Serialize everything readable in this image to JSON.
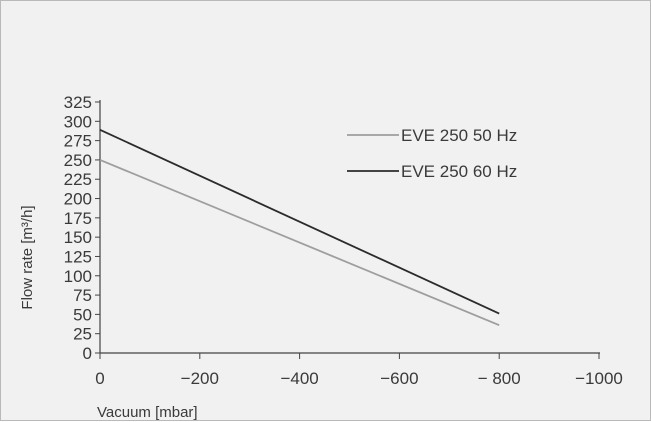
{
  "chart_data": {
    "type": "line",
    "xlabel": "Vacuum [mbar]",
    "ylabel": "Flow rate [m³/h]",
    "xlim": [
      0,
      -1000
    ],
    "ylim": [
      0,
      325
    ],
    "x_ticks": [
      0,
      -200,
      -400,
      -600,
      -800,
      -1000
    ],
    "x_tick_labels": [
      "0",
      "−200",
      "−400",
      "−600",
      "− 800",
      "−1000"
    ],
    "y_ticks": [
      0,
      25,
      50,
      75,
      100,
      125,
      150,
      175,
      200,
      225,
      250,
      275,
      300,
      325
    ],
    "y_tick_labels": [
      "0",
      "25",
      "50",
      "75",
      "100",
      "125",
      "150",
      "175",
      "200",
      "225",
      "250",
      "275",
      "300",
      "325"
    ],
    "grid": false,
    "legend_position": "top-right",
    "series": [
      {
        "name": "EVE 250 50 Hz",
        "color": "#9e9e9e",
        "x": [
          0,
          -800
        ],
        "y": [
          250,
          36
        ]
      },
      {
        "name": "EVE 250 60 Hz",
        "color": "#2b2b2b",
        "x": [
          0,
          -800
        ],
        "y": [
          289,
          51
        ]
      }
    ]
  }
}
